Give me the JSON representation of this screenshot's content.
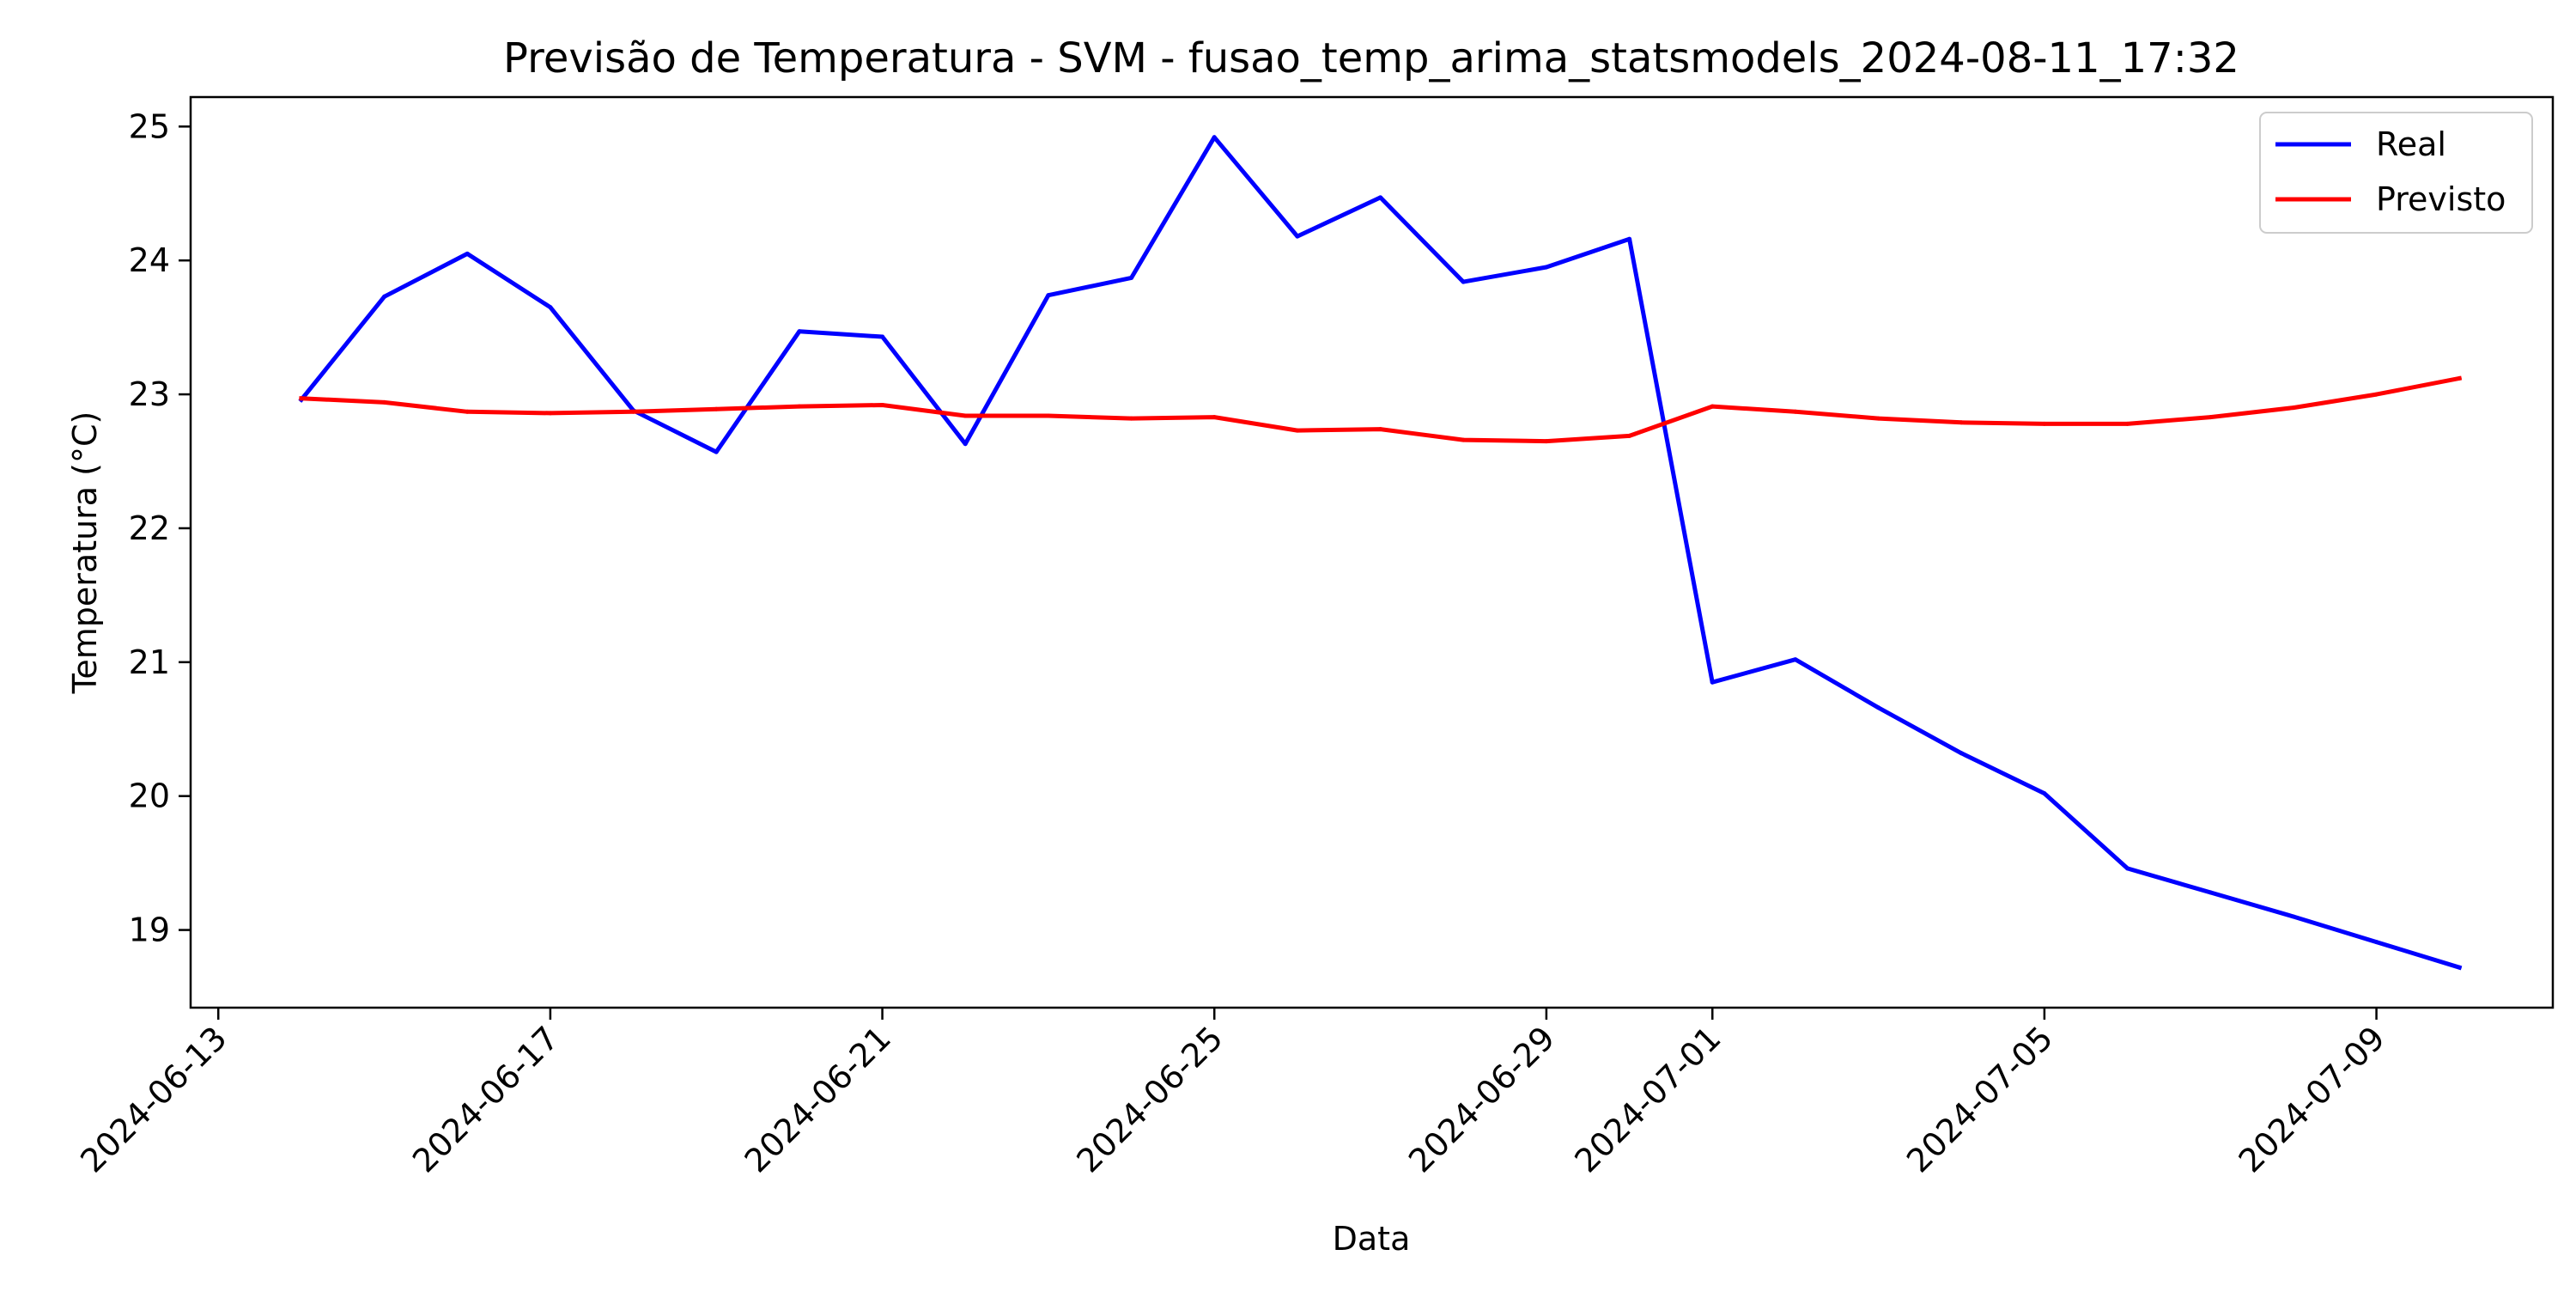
{
  "chart_data": {
    "type": "line",
    "title": "Previsão de Temperatura - SVM - fusao_temp_arima_statsmodels_2024-08-11_17:32",
    "xlabel": "Data",
    "ylabel": "Temperatura (°C)",
    "x": [
      "2024-06-14",
      "2024-06-15",
      "2024-06-16",
      "2024-06-17",
      "2024-06-18",
      "2024-06-19",
      "2024-06-20",
      "2024-06-21",
      "2024-06-22",
      "2024-06-23",
      "2024-06-24",
      "2024-06-25",
      "2024-06-26",
      "2024-06-27",
      "2024-06-28",
      "2024-06-29",
      "2024-06-30",
      "2024-07-01",
      "2024-07-02",
      "2024-07-03",
      "2024-07-04",
      "2024-07-05",
      "2024-07-06",
      "2024-07-07",
      "2024-07-08",
      "2024-07-09",
      "2024-07-10"
    ],
    "series": [
      {
        "name": "Real",
        "color": "#0000ff",
        "values": [
          22.96,
          23.73,
          24.05,
          23.65,
          22.88,
          22.57,
          23.47,
          23.43,
          22.63,
          23.74,
          23.87,
          24.92,
          24.18,
          24.47,
          23.84,
          23.95,
          24.16,
          20.85,
          21.02,
          20.66,
          20.32,
          20.02,
          19.46,
          19.28,
          19.1,
          18.91,
          18.72
        ]
      },
      {
        "name": "Previsto",
        "color": "#ff0000",
        "values": [
          22.97,
          22.94,
          22.87,
          22.86,
          22.87,
          22.89,
          22.91,
          22.92,
          22.84,
          22.84,
          22.82,
          22.83,
          22.73,
          22.74,
          22.66,
          22.65,
          22.69,
          22.91,
          22.87,
          22.82,
          22.79,
          22.78,
          22.78,
          22.83,
          22.9,
          23.0,
          23.12
        ]
      }
    ],
    "xticks": [
      "2024-06-13",
      "2024-06-17",
      "2024-06-21",
      "2024-06-25",
      "2024-06-29",
      "2024-07-01",
      "2024-07-05",
      "2024-07-09"
    ],
    "yticks": [
      19,
      20,
      21,
      22,
      23,
      24,
      25
    ],
    "xlim": [
      "2024-06-12T16:00:00",
      "2024-07-11T03:00:00"
    ],
    "ylim": [
      18.42,
      25.22
    ],
    "grid": false,
    "legend_position": "top-right"
  }
}
